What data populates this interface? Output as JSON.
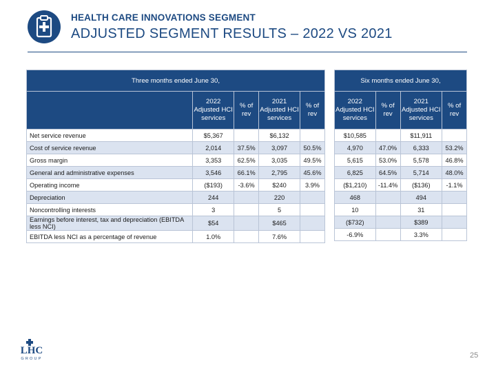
{
  "header": {
    "segment_title": "HEALTH CARE INNOVATIONS SEGMENT",
    "main_title": "ADJUSTED SEGMENT RESULTS – 2022 VS 2021"
  },
  "table_left": {
    "period_title": "Three months ended June 30,",
    "columns": [
      "2022 Adjusted HCI services",
      "% of rev",
      "2021 Adjusted HCI services",
      "% of rev"
    ],
    "rows": [
      {
        "label": "Net service revenue",
        "c2022": "$5,367",
        "p2022": "",
        "c2021": "$6,132",
        "p2021": ""
      },
      {
        "label": "Cost of service revenue",
        "c2022": "2,014",
        "p2022": "37.5%",
        "c2021": "3,097",
        "p2021": "50.5%"
      },
      {
        "label": "Gross margin",
        "c2022": "3,353",
        "p2022": "62.5%",
        "c2021": "3,035",
        "p2021": "49.5%"
      },
      {
        "label": "General and administrative expenses",
        "c2022": "3,546",
        "p2022": "66.1%",
        "c2021": "2,795",
        "p2021": "45.6%"
      },
      {
        "label": "Operating income",
        "c2022": "($193)",
        "p2022": "-3.6%",
        "c2021": "$240",
        "p2021": "3.9%"
      },
      {
        "label": "Depreciation",
        "c2022": "244",
        "p2022": "",
        "c2021": "220",
        "p2021": ""
      },
      {
        "label": "Noncontrolling interests",
        "c2022": "3",
        "p2022": "",
        "c2021": "5",
        "p2021": ""
      },
      {
        "label": "Earnings before interest, tax and depreciation (EBITDA less NCI)",
        "c2022": "$54",
        "p2022": "",
        "c2021": "$465",
        "p2021": ""
      },
      {
        "label": "EBITDA less NCI as a percentage of revenue",
        "c2022": "1.0%",
        "p2022": "",
        "c2021": "7.6%",
        "p2021": ""
      }
    ]
  },
  "table_right": {
    "period_title": "Six months ended June 30,",
    "columns": [
      "2022 Adjusted HCI services",
      "% of rev",
      "2021 Adjusted HCI services",
      "% of rev"
    ],
    "rows": [
      {
        "c2022": "$10,585",
        "p2022": "",
        "c2021": "$11,911",
        "p2021": ""
      },
      {
        "c2022": "4,970",
        "p2022": "47.0%",
        "c2021": "6,333",
        "p2021": "53.2%"
      },
      {
        "c2022": "5,615",
        "p2022": "53.0%",
        "c2021": "5,578",
        "p2021": "46.8%"
      },
      {
        "c2022": "6,825",
        "p2022": "64.5%",
        "c2021": "5,714",
        "p2021": "48.0%"
      },
      {
        "c2022": "($1,210)",
        "p2022": "-11.4%",
        "c2021": "($136)",
        "p2021": "-1.1%"
      },
      {
        "c2022": "468",
        "p2022": "",
        "c2021": "494",
        "p2021": ""
      },
      {
        "c2022": "10",
        "p2022": "",
        "c2021": "31",
        "p2021": ""
      },
      {
        "c2022": "($732)",
        "p2022": "",
        "c2021": "$389",
        "p2021": ""
      },
      {
        "c2022": "-6.9%",
        "p2022": "",
        "c2021": "3.3%",
        "p2021": ""
      }
    ]
  },
  "logo": {
    "top": "LHC",
    "bottom": "GROUP"
  },
  "page_number": "25",
  "colors": {
    "brand": "#1d4a82",
    "band": "#dbe3f0",
    "border": "#b9c4d6"
  },
  "icons": {
    "header": "clipboard-medical-icon"
  }
}
